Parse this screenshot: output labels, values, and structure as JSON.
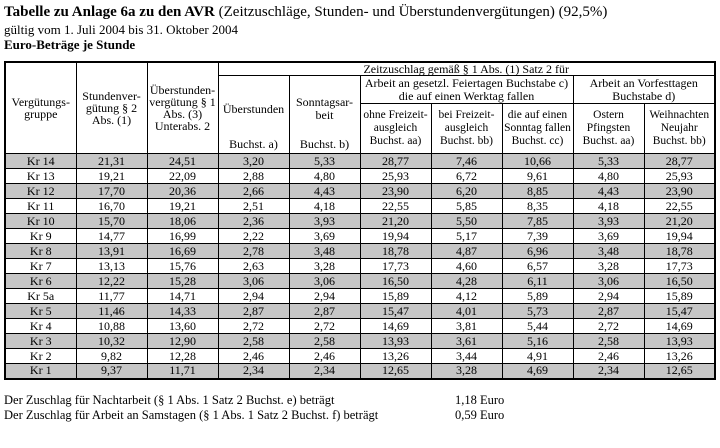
{
  "page": {
    "title_bold": "Tabelle zu Anlage 6a zu den AVR",
    "title_rest": " (Zeitzuschläge, Stunden- und Überstundenvergütungen) (92,5%)",
    "validity": "gültig vom 1. Juli 2004 bis 31. Oktober 2004",
    "unit_line": "Euro-Beträge je Stunde"
  },
  "table": {
    "group_header": "Zeitzuschlag gemäß § 1 Abs. (1) Satz 2 für",
    "columns": {
      "verguetungsgruppe": "Vergütungs-\ngruppe",
      "stundenverguetung": "Stundenver-\ngütung § 2\nAbs. (1)",
      "ueberstundenverguetung": "Überstunden-\nvergütung § 1\nAbs. (3)\nUnterabs. 2",
      "ueberstunden_top": "Überstunden",
      "ueberstunden_bottom": "Buchst. a)",
      "sonntagsarbeit_top": "Sonntagsar-\nbeit",
      "sonntagsarbeit_bottom": "Buchst. b)",
      "feiertage_group": "Arbeit an gesetzl. Feiertagen Buchstabe c)\ndie auf einen Werktag fallen",
      "ohne_freizeitausgleich": "ohne Freizeit-\nausgleich\nBuchst. aa)",
      "bei_freizeitausgleich": "bei Freizeit-\nausgleich\nBuchst. bb)",
      "sonntag_fallen": "die auf einen\nSonntag fallen\nBuchst. cc)",
      "vorfesttage_group": "Arbeit an Vorfesttagen\nBuchstabe d)",
      "ostern_pfingsten": "Ostern\nPfingsten\nBuchst. aa)",
      "weihnachten_neujahr": "Weihnachten\nNeujahr\nBuchst. bb)"
    },
    "rows": [
      {
        "group": "Kr 14",
        "values": [
          "21,31",
          "24,51",
          "3,20",
          "5,33",
          "28,77",
          "7,46",
          "10,66",
          "5,33",
          "28,77"
        ]
      },
      {
        "group": "Kr 13",
        "values": [
          "19,21",
          "22,09",
          "2,88",
          "4,80",
          "25,93",
          "6,72",
          "9,61",
          "4,80",
          "25,93"
        ]
      },
      {
        "group": "Kr 12",
        "values": [
          "17,70",
          "20,36",
          "2,66",
          "4,43",
          "23,90",
          "6,20",
          "8,85",
          "4,43",
          "23,90"
        ]
      },
      {
        "group": "Kr 11",
        "values": [
          "16,70",
          "19,21",
          "2,51",
          "4,18",
          "22,55",
          "5,85",
          "8,35",
          "4,18",
          "22,55"
        ]
      },
      {
        "group": "Kr 10",
        "values": [
          "15,70",
          "18,06",
          "2,36",
          "3,93",
          "21,20",
          "5,50",
          "7,85",
          "3,93",
          "21,20"
        ]
      },
      {
        "group": "Kr 9",
        "values": [
          "14,77",
          "16,99",
          "2,22",
          "3,69",
          "19,94",
          "5,17",
          "7,39",
          "3,69",
          "19,94"
        ]
      },
      {
        "group": "Kr 8",
        "values": [
          "13,91",
          "16,69",
          "2,78",
          "3,48",
          "18,78",
          "4,87",
          "6,96",
          "3,48",
          "18,78"
        ]
      },
      {
        "group": "Kr 7",
        "values": [
          "13,13",
          "15,76",
          "2,63",
          "3,28",
          "17,73",
          "4,60",
          "6,57",
          "3,28",
          "17,73"
        ]
      },
      {
        "group": "Kr 6",
        "values": [
          "12,22",
          "15,28",
          "3,06",
          "3,06",
          "16,50",
          "4,28",
          "6,11",
          "3,06",
          "16,50"
        ]
      },
      {
        "group": "Kr 5a",
        "values": [
          "11,77",
          "14,71",
          "2,94",
          "2,94",
          "15,89",
          "4,12",
          "5,89",
          "2,94",
          "15,89"
        ]
      },
      {
        "group": "Kr 5",
        "values": [
          "11,46",
          "14,33",
          "2,87",
          "2,87",
          "15,47",
          "4,01",
          "5,73",
          "2,87",
          "15,47"
        ]
      },
      {
        "group": "Kr 4",
        "values": [
          "10,88",
          "13,60",
          "2,72",
          "2,72",
          "14,69",
          "3,81",
          "5,44",
          "2,72",
          "14,69"
        ]
      },
      {
        "group": "Kr 3",
        "values": [
          "10,32",
          "12,90",
          "2,58",
          "2,58",
          "13,93",
          "3,61",
          "5,16",
          "2,58",
          "13,93"
        ]
      },
      {
        "group": "Kr 2",
        "values": [
          "9,82",
          "12,28",
          "2,46",
          "2,46",
          "13,26",
          "3,44",
          "4,91",
          "2,46",
          "13,26"
        ]
      },
      {
        "group": "Kr 1",
        "values": [
          "9,37",
          "11,71",
          "2,34",
          "2,34",
          "12,65",
          "3,28",
          "4,69",
          "2,34",
          "12,65"
        ]
      }
    ]
  },
  "footer": {
    "lines": [
      {
        "label": "Der Zuschlag für Nachtarbeit (§ 1 Abs. 1 Satz 2 Buchst. e) beträgt",
        "value": "1,18 Euro"
      },
      {
        "label": "Der Zuschlag für Arbeit an Samstagen (§ 1 Abs. 1 Satz 2 Buchst. f) beträgt",
        "value": "0,59 Euro"
      }
    ]
  },
  "colors": {
    "row_shaded": "#c6c6c6",
    "border": "#000000",
    "text": "#000000",
    "background": "#ffffff"
  }
}
